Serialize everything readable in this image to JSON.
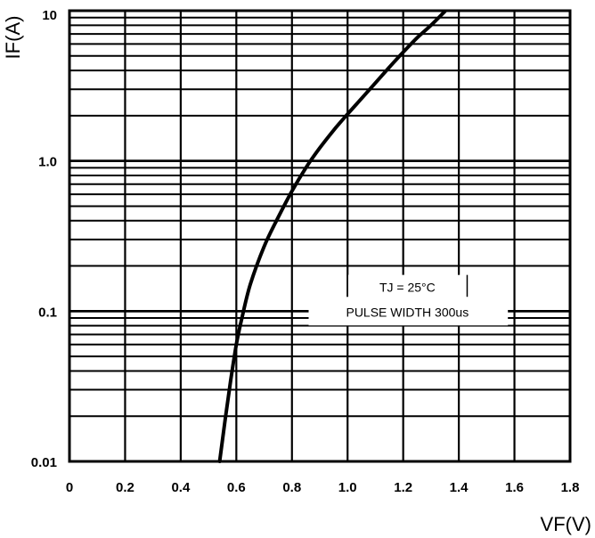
{
  "chart_data": {
    "type": "line",
    "xlabel": "VF(V)",
    "ylabel": "IF(A)",
    "x_scale": "linear",
    "y_scale": "log",
    "xlim": [
      0,
      1.8
    ],
    "ylim": [
      0.01,
      10
    ],
    "grid": true,
    "x_ticks": [
      "0",
      "0.2",
      "0.4",
      "0.6",
      "0.8",
      "1.0",
      "1.2",
      "1.4",
      "1.6",
      "1.8"
    ],
    "x_tick_values": [
      0,
      0.2,
      0.4,
      0.6,
      0.8,
      1.0,
      1.2,
      1.4,
      1.6,
      1.8
    ],
    "y_ticks": [
      "0.01",
      "0.1",
      "1.0",
      "10"
    ],
    "y_tick_values": [
      0.01,
      0.1,
      1.0,
      10
    ],
    "annotations": [
      "TJ = 25°C",
      "PULSE WIDTH 300us"
    ],
    "series": [
      {
        "x": [
          0.54,
          0.56,
          0.58,
          0.6,
          0.62,
          0.65,
          0.7,
          0.75,
          0.8,
          0.85,
          0.9,
          0.95,
          1.0,
          1.05,
          1.1,
          1.15,
          1.2,
          1.25,
          1.3,
          1.35
        ],
        "y": [
          0.01,
          0.019,
          0.035,
          0.06,
          0.09,
          0.15,
          0.27,
          0.42,
          0.63,
          0.9,
          1.22,
          1.6,
          2.05,
          2.6,
          3.3,
          4.2,
          5.3,
          6.6,
          8.0,
          9.9
        ]
      }
    ]
  }
}
